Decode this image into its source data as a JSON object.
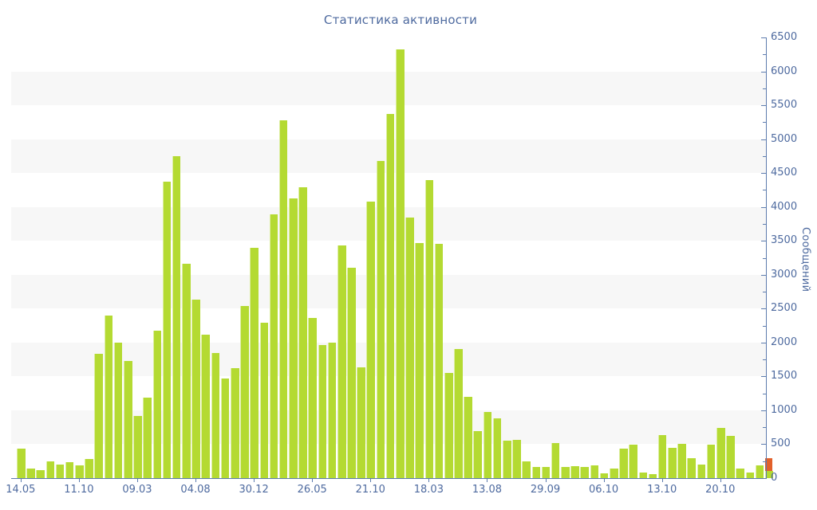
{
  "title": "Статистика активности",
  "colors": {
    "bar_green": "#b4da32",
    "bar_red": "#e2602a",
    "axis_line": "#5d7cae",
    "text_blue": "#4e6a9f",
    "band_gray": "#f7f7f7",
    "background": "#ffffff"
  },
  "chart_data": {
    "type": "bar",
    "title": "Статистика активности",
    "ylabel": "Сообщений",
    "xlabel": "",
    "ylim": [
      0,
      6500
    ],
    "y_major_step": 500,
    "y_minor_step": 250,
    "grid": "alternating horizontal bands of 500 units",
    "legend_position": "none",
    "x_tick_labels": [
      "14.05",
      "11.10",
      "09.03",
      "04.08",
      "30.12",
      "26.05",
      "21.10",
      "18.03",
      "13.08",
      "29.09",
      "06.10",
      "13.10",
      "20.10"
    ],
    "x_tick_every_n_bars": 6,
    "values": [
      430,
      140,
      120,
      250,
      195,
      240,
      185,
      280,
      1830,
      2400,
      2000,
      1730,
      920,
      1190,
      2175,
      4370,
      4750,
      3160,
      2630,
      2120,
      1840,
      1470,
      1620,
      2540,
      3400,
      2290,
      3890,
      5280,
      4130,
      4290,
      2360,
      1960,
      2000,
      3430,
      3100,
      1630,
      4075,
      4680,
      5370,
      6320,
      3840,
      3470,
      4400,
      3450,
      1550,
      1910,
      1195,
      695,
      980,
      880,
      555,
      570,
      250,
      170,
      160,
      520,
      165,
      180,
      165,
      185,
      75,
      140,
      440,
      490,
      85,
      55,
      635,
      450,
      500,
      290,
      195,
      490,
      735,
      620,
      140,
      80,
      185,
      100
    ],
    "last_bar_red_overlay": 195,
    "y_axis_side": "right"
  }
}
